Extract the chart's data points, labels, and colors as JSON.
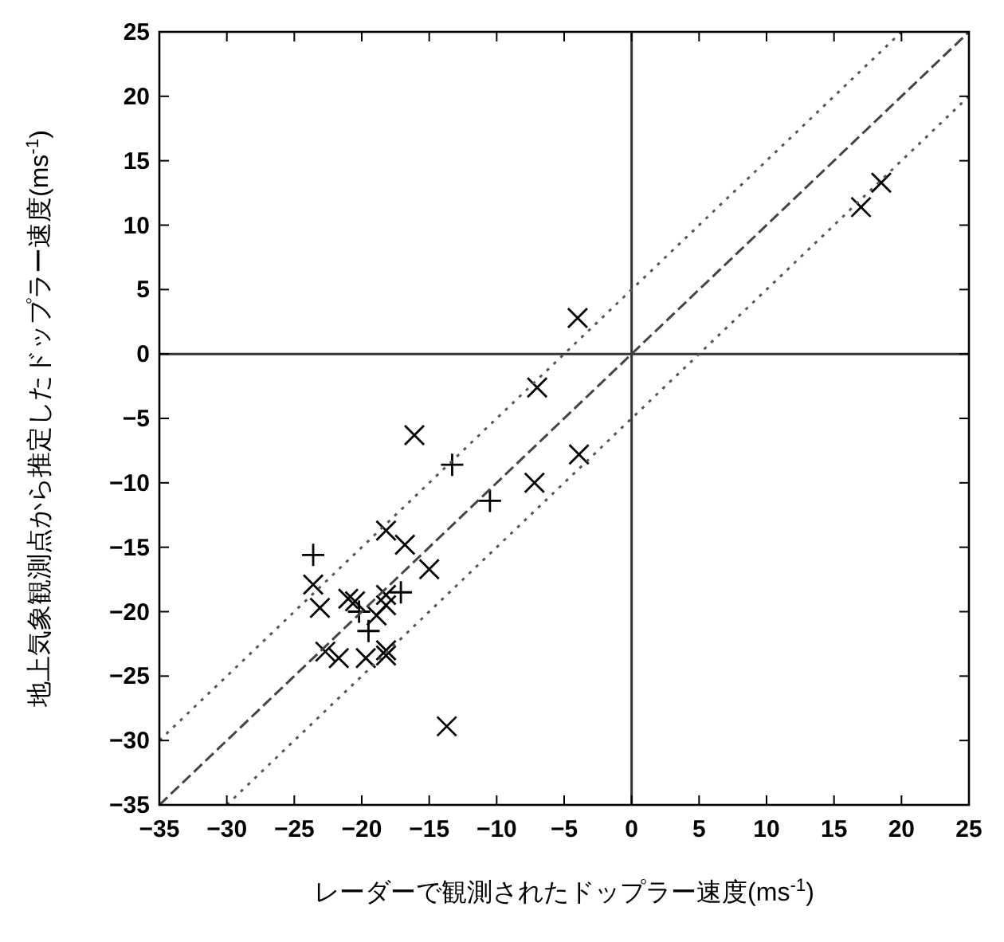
{
  "chart_data": {
    "type": "scatter",
    "xlabel": "レーダーで観測されたドップラー速度(ms$^{-1}$)",
    "ylabel": "地上気象観測点から推定したドップラー速度(ms$^{-1}$)",
    "xlim": [
      -35,
      25
    ],
    "ylim": [
      -35,
      25
    ],
    "xticks": [
      -35,
      -30,
      -25,
      -20,
      -15,
      -10,
      -5,
      0,
      5,
      10,
      15,
      20,
      25
    ],
    "yticks": [
      -35,
      -30,
      -25,
      -20,
      -15,
      -10,
      -5,
      0,
      5,
      10,
      15,
      20,
      25
    ],
    "grid": false,
    "series": [
      {
        "type": "line",
        "line_style": "solid",
        "color": "#333333",
        "x": [
          0,
          0
        ],
        "values": [
          -35,
          25
        ]
      },
      {
        "type": "line",
        "line_style": "solid",
        "color": "#333333",
        "x": [
          -35,
          25
        ],
        "values": [
          0,
          0
        ]
      },
      {
        "marker": "x",
        "color": "#000000",
        "x": [
          17.0,
          18.5,
          -4.0,
          -7.0,
          -16.1,
          -3.9,
          -7.2,
          -23.6,
          -23.1,
          -18.2,
          -16.8,
          -21.0,
          -20.5,
          -18.2,
          -18.2,
          -18.9,
          -22.7,
          -21.7,
          -19.7,
          -18.2,
          -18.2,
          -13.7,
          -15.0
        ],
        "values": [
          11.4,
          13.3,
          2.8,
          -2.6,
          -6.3,
          -7.8,
          -10.0,
          -17.9,
          -19.7,
          -13.7,
          -14.8,
          -19.0,
          -19.2,
          -18.7,
          -19.5,
          -20.3,
          -23.1,
          -23.6,
          -23.6,
          -23.0,
          -23.4,
          -28.9,
          -16.7
        ]
      },
      {
        "marker": "cross",
        "color": "#000000",
        "x": [
          -13.3,
          -10.5,
          -23.6,
          -17.1,
          -19.5,
          -20.2
        ],
        "values": [
          -8.6,
          -11.4,
          -15.6,
          -18.5,
          -21.5,
          -20.0
        ]
      },
      {
        "type": "line",
        "line_style": "dashed",
        "color": "#444444",
        "x": [
          -35,
          25
        ],
        "values": [
          -35,
          25
        ]
      },
      {
        "type": "line",
        "line_style": "dotted",
        "color": "#555555",
        "x": [
          -35,
          20
        ],
        "values": [
          -30,
          25
        ]
      },
      {
        "type": "line",
        "line_style": "dotted",
        "color": "#555555",
        "x": [
          -30,
          25
        ],
        "values": [
          -35,
          20
        ]
      }
    ]
  }
}
